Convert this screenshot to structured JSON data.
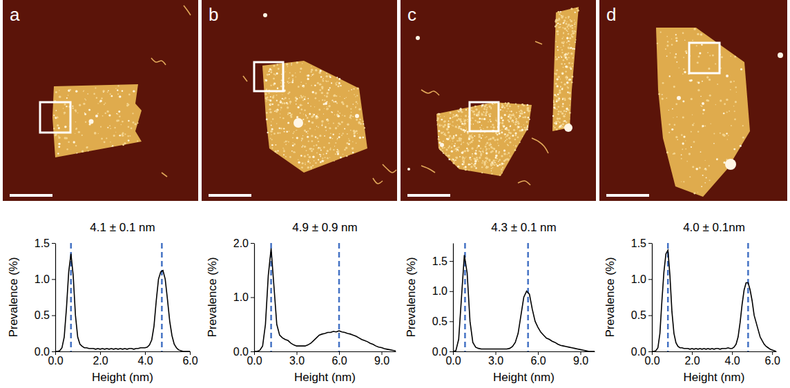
{
  "chart_data": [
    {
      "type": "line",
      "panel": "a",
      "title": "4.1 ± 0.1 nm",
      "x_label": "Height (nm)",
      "y_label": "Prevalence (%)",
      "xlim": [
        0,
        6
      ],
      "xticks": [
        {
          "value": 0,
          "label": "0.0"
        },
        {
          "value": 2,
          "label": "2.0"
        },
        {
          "value": 4,
          "label": "4.0"
        },
        {
          "value": 6,
          "label": "6.0"
        }
      ],
      "ylim": [
        0,
        1.5
      ],
      "yticks": [
        {
          "value": 0,
          "label": "0.0"
        },
        0.5,
        {
          "value": 1,
          "label": "1.0"
        },
        1.5
      ],
      "grid": false,
      "color": "#000000",
      "line_style": "solid",
      "peaks": [
        0.7,
        4.75
      ],
      "x": [
        0,
        0.1,
        0.2,
        0.3,
        0.4,
        0.5,
        0.6,
        0.7,
        0.8,
        0.9,
        1,
        1.1,
        1.2,
        1.3,
        1.4,
        1.5,
        1.6,
        1.7,
        1.8,
        1.9,
        2,
        2.1,
        2.2,
        2.3,
        2.4,
        2.5,
        2.6,
        2.7,
        2.8,
        2.9,
        3,
        3.1,
        3.2,
        3.3,
        3.4,
        3.5,
        3.6,
        3.7,
        3.8,
        3.9,
        4,
        4.1,
        4.2,
        4.3,
        4.4,
        4.5,
        4.6,
        4.7,
        4.8,
        4.9,
        5,
        5.1,
        5.2,
        5.3,
        5.4,
        5.5,
        5.6,
        5.7,
        5.8,
        5.9,
        6
      ],
      "values": [
        0,
        0,
        0.01,
        0.05,
        0.2,
        0.6,
        1.1,
        1.35,
        1.05,
        0.5,
        0.2,
        0.1,
        0.07,
        0.05,
        0.05,
        0.04,
        0.04,
        0.04,
        0.03,
        0.04,
        0.03,
        0.04,
        0.03,
        0.04,
        0.03,
        0.04,
        0.03,
        0.04,
        0.03,
        0.04,
        0.03,
        0.04,
        0.03,
        0.04,
        0.04,
        0.03,
        0.04,
        0.04,
        0.05,
        0.05,
        0.05,
        0.06,
        0.09,
        0.16,
        0.35,
        0.7,
        1.0,
        1.1,
        1.12,
        1.0,
        0.72,
        0.42,
        0.22,
        0.1,
        0.05,
        0.02,
        0.01,
        0,
        0,
        0,
        0
      ]
    },
    {
      "type": "line",
      "panel": "b",
      "title": "4.9 ± 0.9 nm",
      "x_label": "Height (nm)",
      "y_label": "Prevalence (%)",
      "xlim": [
        0,
        10
      ],
      "xticks": [
        {
          "value": 0,
          "label": "0.0"
        },
        {
          "value": 3,
          "label": "3.0"
        },
        {
          "value": 6,
          "label": "6.0"
        },
        {
          "value": 9,
          "label": "9.0"
        }
      ],
      "ylim": [
        0,
        2
      ],
      "yticks": [
        {
          "value": 0,
          "label": "0.0"
        },
        {
          "value": 1,
          "label": "1.0"
        },
        {
          "value": 2,
          "label": "2.0"
        }
      ],
      "grid": false,
      "color": "#000000",
      "line_style": "solid",
      "peaks": [
        1.2,
        6.0
      ],
      "x": [
        0,
        0.2,
        0.4,
        0.6,
        0.8,
        1,
        1.2,
        1.4,
        1.6,
        1.8,
        2,
        2.2,
        2.4,
        2.6,
        2.8,
        3,
        3.2,
        3.4,
        3.6,
        3.8,
        4,
        4.2,
        4.4,
        4.6,
        4.8,
        5,
        5.2,
        5.4,
        5.6,
        5.8,
        6,
        6.2,
        6.4,
        6.6,
        6.8,
        7,
        7.2,
        7.4,
        7.6,
        7.8,
        8,
        8.2,
        8.4,
        8.6,
        8.8,
        9,
        9.2,
        9.4,
        9.6,
        9.8,
        10
      ],
      "values": [
        0,
        0,
        0.02,
        0.1,
        0.5,
        1.4,
        1.9,
        1.2,
        0.5,
        0.3,
        0.25,
        0.22,
        0.2,
        0.15,
        0.12,
        0.1,
        0.1,
        0.1,
        0.1,
        0.12,
        0.15,
        0.2,
        0.25,
        0.3,
        0.32,
        0.33,
        0.35,
        0.35,
        0.37,
        0.36,
        0.38,
        0.36,
        0.35,
        0.33,
        0.32,
        0.3,
        0.28,
        0.25,
        0.22,
        0.2,
        0.18,
        0.15,
        0.13,
        0.1,
        0.08,
        0.07,
        0.05,
        0.04,
        0.03,
        0.02,
        0.01
      ]
    },
    {
      "type": "line",
      "panel": "c",
      "title": "4.3 ± 0.1 nm",
      "x_label": "Height (nm)",
      "y_label": "Prevalence (%)",
      "xlim": [
        0,
        10
      ],
      "xticks": [
        {
          "value": 0,
          "label": "0.0"
        },
        {
          "value": 3,
          "label": "3.0"
        },
        {
          "value": 6,
          "label": "6.0"
        },
        {
          "value": 9,
          "label": "9.0"
        }
      ],
      "ylim": [
        0,
        1.8
      ],
      "yticks": [
        {
          "value": 0,
          "label": "0.0"
        },
        0.5,
        {
          "value": 1,
          "label": "1.0"
        },
        1.5
      ],
      "grid": false,
      "color": "#000000",
      "line_style": "solid",
      "peaks": [
        0.85,
        5.3
      ],
      "x": [
        0,
        0.2,
        0.4,
        0.6,
        0.8,
        1,
        1.2,
        1.4,
        1.6,
        1.8,
        2,
        2.2,
        2.4,
        2.6,
        2.8,
        3,
        3.2,
        3.4,
        3.6,
        3.8,
        4,
        4.2,
        4.4,
        4.6,
        4.8,
        5,
        5.2,
        5.4,
        5.6,
        5.8,
        6,
        6.2,
        6.4,
        6.6,
        6.8,
        7,
        7.2,
        7.4,
        7.6,
        7.8,
        8,
        8.2,
        8.4,
        8.6,
        8.8,
        9,
        9.2,
        9.4,
        9.6,
        9.8,
        10
      ],
      "values": [
        0,
        0.01,
        0.2,
        0.9,
        1.6,
        1.3,
        0.5,
        0.15,
        0.07,
        0.05,
        0.04,
        0.04,
        0.04,
        0.04,
        0.04,
        0.04,
        0.04,
        0.04,
        0.04,
        0.04,
        0.05,
        0.08,
        0.15,
        0.3,
        0.6,
        0.9,
        1.0,
        0.95,
        0.7,
        0.5,
        0.4,
        0.32,
        0.27,
        0.22,
        0.2,
        0.17,
        0.15,
        0.12,
        0.1,
        0.09,
        0.08,
        0.07,
        0.06,
        0.05,
        0.04,
        0.03,
        0.02,
        0.01,
        0,
        0,
        0
      ]
    },
    {
      "type": "line",
      "panel": "d",
      "title": "4.0 ± 0.1nm",
      "x_label": "Height (nm)",
      "y_label": "Prevalence (%)",
      "xlim": [
        0,
        6.2
      ],
      "xticks": [
        {
          "value": 0,
          "label": "0.0"
        },
        {
          "value": 2,
          "label": "2.0"
        },
        {
          "value": 4,
          "label": "4.0"
        },
        {
          "value": 6,
          "label": "6.0"
        }
      ],
      "ylim": [
        0,
        1.5
      ],
      "yticks": [
        {
          "value": 0,
          "label": "0.0"
        },
        0.5,
        {
          "value": 1,
          "label": "1.0"
        },
        1.5
      ],
      "grid": false,
      "color": "#000000",
      "line_style": "solid",
      "peaks": [
        0.8,
        4.8
      ],
      "x": [
        0,
        0.1,
        0.2,
        0.3,
        0.4,
        0.5,
        0.6,
        0.7,
        0.8,
        0.9,
        1,
        1.1,
        1.2,
        1.3,
        1.4,
        1.5,
        1.6,
        1.7,
        1.8,
        1.9,
        2,
        2.1,
        2.2,
        2.3,
        2.4,
        2.5,
        2.6,
        2.7,
        2.8,
        2.9,
        3,
        3.1,
        3.2,
        3.3,
        3.4,
        3.5,
        3.6,
        3.7,
        3.8,
        3.9,
        4,
        4.1,
        4.2,
        4.3,
        4.4,
        4.5,
        4.6,
        4.7,
        4.8,
        4.9,
        5,
        5.1,
        5.2,
        5.3,
        5.4,
        5.5,
        5.6,
        5.7,
        5.8,
        5.9,
        6,
        6.1,
        6.2
      ],
      "values": [
        0,
        0,
        0.01,
        0.05,
        0.25,
        0.7,
        1.1,
        1.35,
        1.4,
        1.05,
        0.55,
        0.25,
        0.12,
        0.07,
        0.05,
        0.05,
        0.04,
        0.04,
        0.04,
        0.03,
        0.04,
        0.03,
        0.04,
        0.03,
        0.04,
        0.03,
        0.04,
        0.03,
        0.04,
        0.03,
        0.04,
        0.03,
        0.04,
        0.04,
        0.03,
        0.04,
        0.04,
        0.04,
        0.05,
        0.04,
        0.04,
        0.06,
        0.1,
        0.2,
        0.4,
        0.65,
        0.85,
        0.95,
        0.95,
        0.85,
        0.7,
        0.5,
        0.4,
        0.3,
        0.2,
        0.15,
        0.1,
        0.07,
        0.05,
        0.03,
        0.02,
        0.01,
        0
      ]
    }
  ]
}
